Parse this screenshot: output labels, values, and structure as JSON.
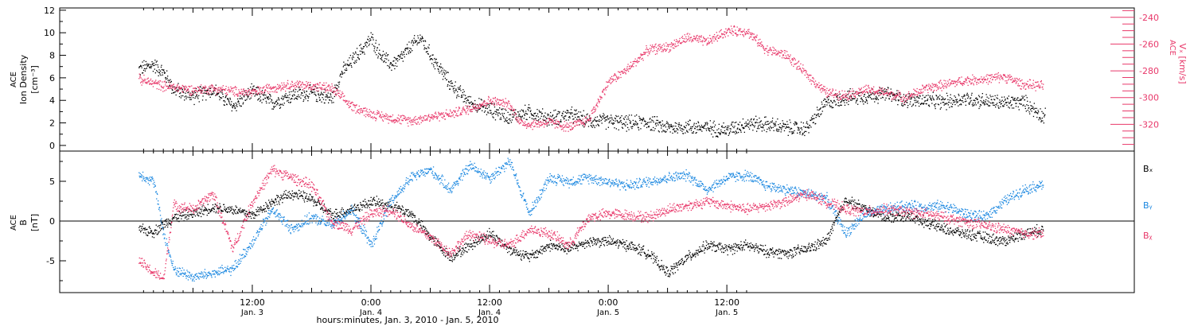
{
  "chart_data": [
    {
      "type": "scatter",
      "panel": "ion-density-and-velocity",
      "left_axis": {
        "label_lines": [
          "ACE",
          "Ion Density",
          "[cm⁻³]"
        ],
        "ticks": [
          "0",
          "2",
          "4",
          "6",
          "8",
          "10",
          "12"
        ],
        "ylim": [
          -0.5,
          12.2
        ]
      },
      "right_axis": {
        "label": "Vₓ [km/s]",
        "label_prefix": "ACE",
        "ticks": [
          "-320",
          "-300",
          "-280",
          "-260",
          "-240"
        ],
        "ylim": [
          -340,
          -233
        ],
        "color": "#e8386a"
      },
      "series": [
        {
          "color": "#000000",
          "axis": "left",
          "x": [
            -23.5,
            -22,
            -21,
            -20,
            -18,
            -16,
            -14,
            -12,
            -10,
            -8,
            -6,
            -4,
            -3,
            -2,
            -1,
            0,
            1,
            2,
            3,
            4,
            5,
            6,
            8,
            10,
            12,
            14,
            16,
            18,
            20,
            22,
            24,
            26,
            28,
            30,
            32,
            34,
            36,
            37,
            38,
            40,
            42,
            44,
            46,
            48,
            50,
            52,
            54,
            56,
            58,
            60,
            62,
            64,
            66,
            68,
            68.2
          ],
          "y": [
            6.8,
            7.2,
            6.5,
            5.0,
            4.4,
            5.0,
            3.5,
            4.8,
            3.8,
            4.5,
            4.7,
            4.2,
            6.5,
            7.5,
            8.5,
            9.5,
            8.0,
            7.2,
            7.8,
            8.8,
            9.6,
            8.0,
            5.5,
            3.8,
            3.2,
            2.6,
            3.0,
            2.4,
            2.8,
            2.2,
            2.2,
            2.0,
            2.1,
            1.6,
            1.7,
            1.6,
            1.4,
            1.7,
            2.0,
            1.9,
            1.6,
            1.5,
            3.8,
            4.3,
            4.4,
            4.6,
            4.1,
            4.0,
            3.9,
            4.2,
            4.0,
            3.8,
            3.9,
            2.6,
            3.0
          ]
        },
        {
          "color": "#e8386a",
          "axis": "right",
          "x": [
            -23.5,
            -22,
            -21,
            -20,
            -18,
            -16,
            -14,
            -12,
            -10,
            -8,
            -6,
            -4,
            -2,
            0,
            2,
            4,
            6,
            8,
            10,
            12,
            14,
            15,
            16,
            18,
            20,
            22,
            24,
            26,
            28,
            30,
            32,
            34,
            36,
            38,
            40,
            42,
            44,
            46,
            48,
            50,
            52,
            54,
            56,
            58,
            60,
            62,
            64,
            66,
            68
          ],
          "y": [
            -286,
            -289,
            -291,
            -292,
            -294,
            -293,
            -295,
            -296,
            -292,
            -290,
            -291,
            -293,
            -306,
            -312,
            -315,
            -317,
            -314,
            -312,
            -308,
            -302,
            -305,
            -318,
            -320,
            -318,
            -322,
            -316,
            -288,
            -278,
            -264,
            -262,
            -255,
            -258,
            -250,
            -250,
            -264,
            -268,
            -282,
            -296,
            -298,
            -294,
            -296,
            -300,
            -293,
            -290,
            -287,
            -286,
            -284,
            -290,
            -291
          ]
        }
      ]
    },
    {
      "type": "scatter",
      "panel": "magnetic-field",
      "left_axis": {
        "label_lines": [
          "ACE",
          "B",
          "[nT]"
        ],
        "ticks": [
          "-5",
          "0",
          "5"
        ],
        "ylim": [
          -9.0,
          8.8
        ]
      },
      "legend": [
        {
          "label": "Bₓ",
          "color": "#000000"
        },
        {
          "label": "Bᵧ",
          "color": "#1a87e0"
        },
        {
          "label": "Bᵪ",
          "color": "#e8386a"
        }
      ],
      "series": [
        {
          "name": "Bₓ",
          "color": "#000000",
          "x": [
            -23.5,
            -22,
            -20,
            -18,
            -16,
            -14,
            -12,
            -10,
            -8,
            -6,
            -4,
            -2,
            0,
            2,
            4,
            6,
            8,
            10,
            12,
            14,
            16,
            18,
            20,
            22,
            24,
            26,
            28,
            30,
            32,
            34,
            36,
            38,
            40,
            42,
            44,
            46,
            48,
            50,
            52,
            54,
            56,
            58,
            60,
            62,
            64,
            66,
            68
          ],
          "y": [
            -1.0,
            -1.3,
            0.5,
            1.0,
            1.8,
            1.5,
            0.8,
            2.5,
            3.5,
            2.8,
            0.8,
            1.5,
            2.5,
            2.0,
            1.0,
            -2.0,
            -4.5,
            -3.0,
            -1.5,
            -3.5,
            -4.5,
            -3.0,
            -3.5,
            -2.5,
            -2.5,
            -3.0,
            -4.0,
            -6.5,
            -4.5,
            -3.0,
            -3.5,
            -3.0,
            -3.8,
            -4.0,
            -3.5,
            -2.5,
            2.8,
            1.5,
            0.5,
            0.8,
            0.0,
            -1.0,
            -1.5,
            -2.0,
            -2.5,
            -1.5,
            -1.0
          ]
        },
        {
          "name": "Bᵧ",
          "color": "#1a87e0",
          "x": [
            -23.5,
            -22,
            -21,
            -20,
            -18,
            -16,
            -14,
            -12,
            -10,
            -8,
            -6,
            -4,
            -2,
            0,
            2,
            4,
            6,
            8,
            10,
            12,
            14,
            16,
            18,
            20,
            22,
            24,
            26,
            28,
            30,
            32,
            34,
            36,
            38,
            40,
            42,
            44,
            46,
            48,
            50,
            52,
            54,
            56,
            58,
            60,
            62,
            64,
            66,
            68
          ],
          "y": [
            6.0,
            5.0,
            -1.5,
            -6.0,
            -7.0,
            -6.5,
            -6.0,
            -2.5,
            1.5,
            -1.0,
            0.5,
            -0.5,
            1.5,
            -3.0,
            2.5,
            5.5,
            6.5,
            4.0,
            7.0,
            5.5,
            7.5,
            1.0,
            5.5,
            5.0,
            5.5,
            5.0,
            4.5,
            5.0,
            5.5,
            5.8,
            4.0,
            5.5,
            5.8,
            4.5,
            4.0,
            3.5,
            3.0,
            -1.5,
            1.0,
            1.5,
            2.0,
            1.8,
            2.0,
            1.0,
            0.5,
            2.5,
            4.0,
            4.7
          ]
        },
        {
          "name": "Bᵪ",
          "color": "#e8386a",
          "x": [
            -23.5,
            -22,
            -21,
            -20,
            -18,
            -16,
            -14,
            -12,
            -10,
            -8,
            -6,
            -4,
            -2,
            0,
            2,
            4,
            6,
            8,
            10,
            12,
            14,
            16,
            18,
            20,
            22,
            24,
            26,
            28,
            30,
            32,
            34,
            36,
            38,
            40,
            42,
            44,
            46,
            48,
            50,
            52,
            54,
            56,
            58,
            60,
            62,
            64,
            66,
            68
          ],
          "y": [
            -5.0,
            -6.5,
            -7.2,
            2.0,
            1.5,
            3.5,
            -3.5,
            2.5,
            6.5,
            5.5,
            4.5,
            0.0,
            -1.0,
            1.0,
            1.5,
            -0.5,
            -2.0,
            -4.0,
            -1.5,
            -2.5,
            -3.0,
            -1.0,
            -1.5,
            -3.0,
            0.5,
            1.0,
            0.8,
            0.5,
            1.5,
            2.0,
            2.5,
            2.0,
            1.5,
            2.0,
            2.5,
            3.5,
            2.5,
            1.5,
            1.2,
            1.5,
            1.2,
            1.0,
            0.5,
            0.0,
            -0.5,
            -1.0,
            -1.5,
            -1.5
          ]
        }
      ],
      "zero_line": true
    }
  ],
  "x_axis": {
    "ticks": [
      {
        "time": "12:00",
        "date": "Jan. 3"
      },
      {
        "time": "0:00",
        "date": "Jan. 4"
      },
      {
        "time": "12:00",
        "date": "Jan. 4"
      },
      {
        "time": "0:00",
        "date": "Jan. 5"
      },
      {
        "time": "12:00",
        "date": "Jan. 5"
      }
    ],
    "title": "hours:minutes, Jan.  3, 2010 - Jan.  5, 2010"
  }
}
